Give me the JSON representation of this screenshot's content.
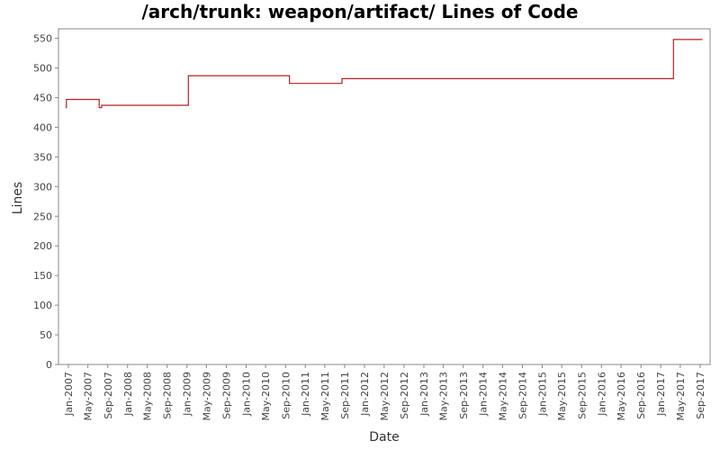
{
  "chart_data": {
    "type": "line",
    "title": "/arch/trunk: weapon/artifact/ Lines of Code",
    "xlabel": "Date",
    "ylabel": "Lines",
    "ylim": [
      0,
      560
    ],
    "y_ticks": [
      0,
      50,
      100,
      150,
      200,
      250,
      300,
      350,
      400,
      450,
      500,
      550
    ],
    "x_range": [
      "2006-11-01",
      "2017-11-01"
    ],
    "x_ticks": [
      {
        "label": "Jan-2007",
        "date": "2007-01-01"
      },
      {
        "label": "May-2007",
        "date": "2007-05-01"
      },
      {
        "label": "Sep-2007",
        "date": "2007-09-01"
      },
      {
        "label": "Jan-2008",
        "date": "2008-01-01"
      },
      {
        "label": "May-2008",
        "date": "2008-05-01"
      },
      {
        "label": "Sep-2008",
        "date": "2008-09-01"
      },
      {
        "label": "Jan-2009",
        "date": "2009-01-01"
      },
      {
        "label": "May-2009",
        "date": "2009-05-01"
      },
      {
        "label": "Sep-2009",
        "date": "2009-09-01"
      },
      {
        "label": "Jan-2010",
        "date": "2010-01-01"
      },
      {
        "label": "May-2010",
        "date": "2010-05-01"
      },
      {
        "label": "Sep-2010",
        "date": "2010-09-01"
      },
      {
        "label": "Jan-2011",
        "date": "2011-01-01"
      },
      {
        "label": "May-2011",
        "date": "2011-05-01"
      },
      {
        "label": "Sep-2011",
        "date": "2011-09-01"
      },
      {
        "label": "Jan-2012",
        "date": "2012-01-01"
      },
      {
        "label": "May-2012",
        "date": "2012-05-01"
      },
      {
        "label": "Sep-2012",
        "date": "2012-09-01"
      },
      {
        "label": "Jan-2013",
        "date": "2013-01-01"
      },
      {
        "label": "May-2013",
        "date": "2013-05-01"
      },
      {
        "label": "Sep-2013",
        "date": "2013-09-01"
      },
      {
        "label": "Jan-2014",
        "date": "2014-01-01"
      },
      {
        "label": "May-2014",
        "date": "2014-05-01"
      },
      {
        "label": "Sep-2014",
        "date": "2014-09-01"
      },
      {
        "label": "Jan-2015",
        "date": "2015-01-01"
      },
      {
        "label": "May-2015",
        "date": "2015-05-01"
      },
      {
        "label": "Sep-2015",
        "date": "2015-09-01"
      },
      {
        "label": "Jan-2016",
        "date": "2016-01-01"
      },
      {
        "label": "May-2016",
        "date": "2016-05-01"
      },
      {
        "label": "Sep-2016",
        "date": "2016-09-01"
      },
      {
        "label": "Jan-2017",
        "date": "2017-01-01"
      },
      {
        "label": "May-2017",
        "date": "2017-05-01"
      },
      {
        "label": "Sep-2017",
        "date": "2017-09-01"
      }
    ],
    "series": [
      {
        "color": "#b22222",
        "step": true,
        "points": [
          {
            "x": "2006-12-15",
            "y": 433
          },
          {
            "x": "2006-12-20",
            "y": 447
          },
          {
            "x": "2007-07-10",
            "y": 433
          },
          {
            "x": "2007-07-25",
            "y": 437
          },
          {
            "x": "2009-01-10",
            "y": 487
          },
          {
            "x": "2010-09-25",
            "y": 474
          },
          {
            "x": "2011-08-15",
            "y": 482
          },
          {
            "x": "2017-03-20",
            "y": 548
          },
          {
            "x": "2017-09-15",
            "y": 548
          }
        ]
      }
    ],
    "grid": false,
    "legend": "none"
  },
  "colors": {
    "line": "#b22222",
    "axis": "#888888",
    "background": "#ffffff"
  }
}
